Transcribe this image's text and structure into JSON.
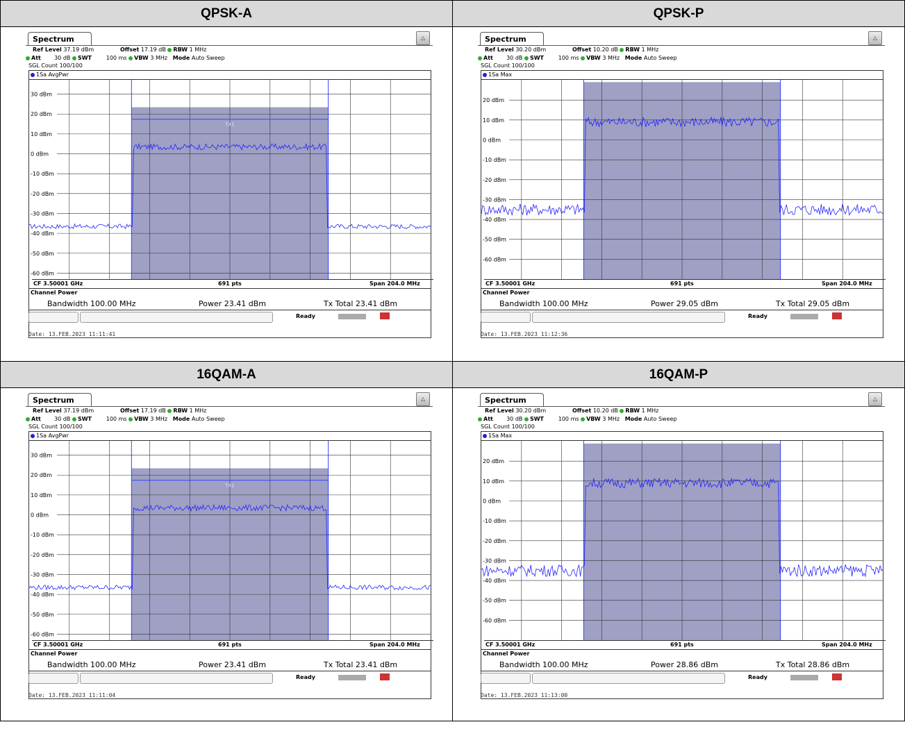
{
  "headers": [
    "QPSK-A",
    "QPSK-P",
    "16QAM-A",
    "16QAM-P"
  ],
  "panels": [
    {
      "tab": "Spectrum",
      "ref_level_label": "Ref Level",
      "ref_level": "37.19 dBm",
      "offset_label": "Offset",
      "offset": "17.19 dB",
      "rbw_label": "RBW",
      "rbw": "1 MHz",
      "att_label": "Att",
      "att": "30 dB",
      "swt_label": "SWT",
      "swt": "100 ms",
      "vbw_label": "VBW",
      "vbw": "3 MHz",
      "mode_label": "Mode",
      "mode": "Auto Sweep",
      "sgl": "SGL Count 100/100",
      "trace": "1Sa AvgPwr",
      "cf": "CF 3.50001 GHz",
      "pts": "691 pts",
      "span": "Span 204.0 MHz",
      "cp_title": "Channel Power",
      "bandwidth": "Bandwidth  100.00 MHz",
      "power": "Power  23.41 dBm",
      "tx_total": "Tx Total  23.41 dBm",
      "ready": "Ready",
      "date": "Date: 13.FEB.2023  11:11:41",
      "tx_label": "TX1"
    },
    {
      "tab": "Spectrum",
      "ref_level_label": "Ref Level",
      "ref_level": "30.20 dBm",
      "offset_label": "Offset",
      "offset": "10.20 dB",
      "rbw_label": "RBW",
      "rbw": "1 MHz",
      "att_label": "Att",
      "att": "30 dB",
      "swt_label": "SWT",
      "swt": "100 ms",
      "vbw_label": "VBW",
      "vbw": "3 MHz",
      "mode_label": "Mode",
      "mode": "Auto Sweep",
      "sgl": "SGL Count 100/100",
      "trace": "1Sa Max",
      "cf": "CF 3.50001 GHz",
      "pts": "691 pts",
      "span": "Span 204.0 MHz",
      "cp_title": "Channel Power",
      "bandwidth": "Bandwidth  100.00 MHz",
      "power": "Power  29.05 dBm",
      "tx_total": "Tx Total  29.05 dBm",
      "ready": "Ready",
      "date": "Date: 13.FEB.2023  11:12:36",
      "tx_label": ""
    },
    {
      "tab": "Spectrum",
      "ref_level_label": "Ref Level",
      "ref_level": "37.19 dBm",
      "offset_label": "Offset",
      "offset": "17.19 dB",
      "rbw_label": "RBW",
      "rbw": "1 MHz",
      "att_label": "Att",
      "att": "30 dB",
      "swt_label": "SWT",
      "swt": "100 ms",
      "vbw_label": "VBW",
      "vbw": "3 MHz",
      "mode_label": "Mode",
      "mode": "Auto Sweep",
      "sgl": "SGL Count 100/100",
      "trace": "1Sa AvgPwr",
      "cf": "CF 3.50001 GHz",
      "pts": "691 pts",
      "span": "Span 204.0 MHz",
      "cp_title": "Channel Power",
      "bandwidth": "Bandwidth  100.00 MHz",
      "power": "Power  23.41 dBm",
      "tx_total": "Tx Total  23.41 dBm",
      "ready": "Ready",
      "date": "Date: 13.FEB.2023  11:11:04",
      "tx_label": "TX1"
    },
    {
      "tab": "Spectrum",
      "ref_level_label": "Ref Level",
      "ref_level": "30.20 dBm",
      "offset_label": "Offset",
      "offset": "10.20 dB",
      "rbw_label": "RBW",
      "rbw": "1 MHz",
      "att_label": "Att",
      "att": "30 dB",
      "swt_label": "SWT",
      "swt": "100 ms",
      "vbw_label": "VBW",
      "vbw": "3 MHz",
      "mode_label": "Mode",
      "mode": "Auto Sweep",
      "sgl": "SGL Count 100/100",
      "trace": "1Sa Max",
      "cf": "CF 3.50001 GHz",
      "pts": "691 pts",
      "span": "Span 204.0 MHz",
      "cp_title": "Channel Power",
      "bandwidth": "Bandwidth  100.00 MHz",
      "power": "Power  28.86 dBm",
      "tx_total": "Tx Total  28.86 dBm",
      "ready": "Ready",
      "date": "Date: 13.FEB.2023  11:13:00",
      "tx_label": ""
    }
  ],
  "chart_data": [
    {
      "type": "line",
      "title": "QPSK-A",
      "x_range_mhz": [
        -102,
        102
      ],
      "ylim": [
        -63,
        37.19
      ],
      "yticks": [
        30,
        20,
        10,
        0,
        -10,
        -20,
        -30,
        -40,
        -50,
        -60
      ],
      "ytick_labels": [
        "30 dBm",
        "20 dBm",
        "10 dBm",
        "0 dBm",
        "-10 dBm",
        "-20 dBm",
        "-30 dBm",
        "-40 dBm",
        "-50 dBm",
        "-60 dBm"
      ],
      "channel_band_mhz": [
        -50,
        50
      ],
      "channel_top_db": 23.41,
      "tx_line_db": 17.4,
      "inband_level_db": 3.5,
      "noise_floor_db": -36.5,
      "noise_amp_db": 1.2,
      "inband_amp_db": 1.5,
      "grid": true,
      "series_color": "#2222ff"
    },
    {
      "type": "line",
      "title": "QPSK-P",
      "x_range_mhz": [
        -102,
        102
      ],
      "ylim": [
        -70,
        30.2
      ],
      "yticks": [
        20,
        10,
        0,
        -10,
        -20,
        -30,
        -40,
        -50,
        -60
      ],
      "ytick_labels": [
        "20 dBm",
        "10 dBm",
        "0 dBm",
        "-10 dBm",
        "-20 dBm",
        "-30 dBm",
        "-40 dBm",
        "-50 dBm",
        "-60 dBm"
      ],
      "channel_band_mhz": [
        -50,
        50
      ],
      "channel_top_db": 29.05,
      "tx_line_db": null,
      "inband_level_db": 9,
      "noise_floor_db": -35,
      "noise_amp_db": 3,
      "inband_amp_db": 2.5,
      "grid": true,
      "series_color": "#2222ff"
    },
    {
      "type": "line",
      "title": "16QAM-A",
      "x_range_mhz": [
        -102,
        102
      ],
      "ylim": [
        -63,
        37.19
      ],
      "yticks": [
        30,
        20,
        10,
        0,
        -10,
        -20,
        -30,
        -40,
        -50,
        -60
      ],
      "ytick_labels": [
        "30 dBm",
        "20 dBm",
        "10 dBm",
        "0 dBm",
        "-10 dBm",
        "-20 dBm",
        "-30 dBm",
        "-40 dBm",
        "-50 dBm",
        "-60 dBm"
      ],
      "channel_band_mhz": [
        -50,
        50
      ],
      "channel_top_db": 23.41,
      "tx_line_db": 17.4,
      "inband_level_db": 3.5,
      "noise_floor_db": -36.5,
      "noise_amp_db": 1.2,
      "inband_amp_db": 1.5,
      "grid": true,
      "series_color": "#2222ff"
    },
    {
      "type": "line",
      "title": "16QAM-P",
      "x_range_mhz": [
        -102,
        102
      ],
      "ylim": [
        -70,
        30.2
      ],
      "yticks": [
        20,
        10,
        0,
        -10,
        -20,
        -30,
        -40,
        -50,
        -60
      ],
      "ytick_labels": [
        "20 dBm",
        "10 dBm",
        "0 dBm",
        "-10 dBm",
        "-20 dBm",
        "-30 dBm",
        "-40 dBm",
        "-50 dBm",
        "-60 dBm"
      ],
      "channel_band_mhz": [
        -50,
        50
      ],
      "channel_top_db": 28.86,
      "tx_line_db": null,
      "inband_level_db": 9,
      "noise_floor_db": -35,
      "noise_amp_db": 3,
      "inband_amp_db": 2.5,
      "grid": true,
      "series_color": "#2222ff"
    }
  ]
}
